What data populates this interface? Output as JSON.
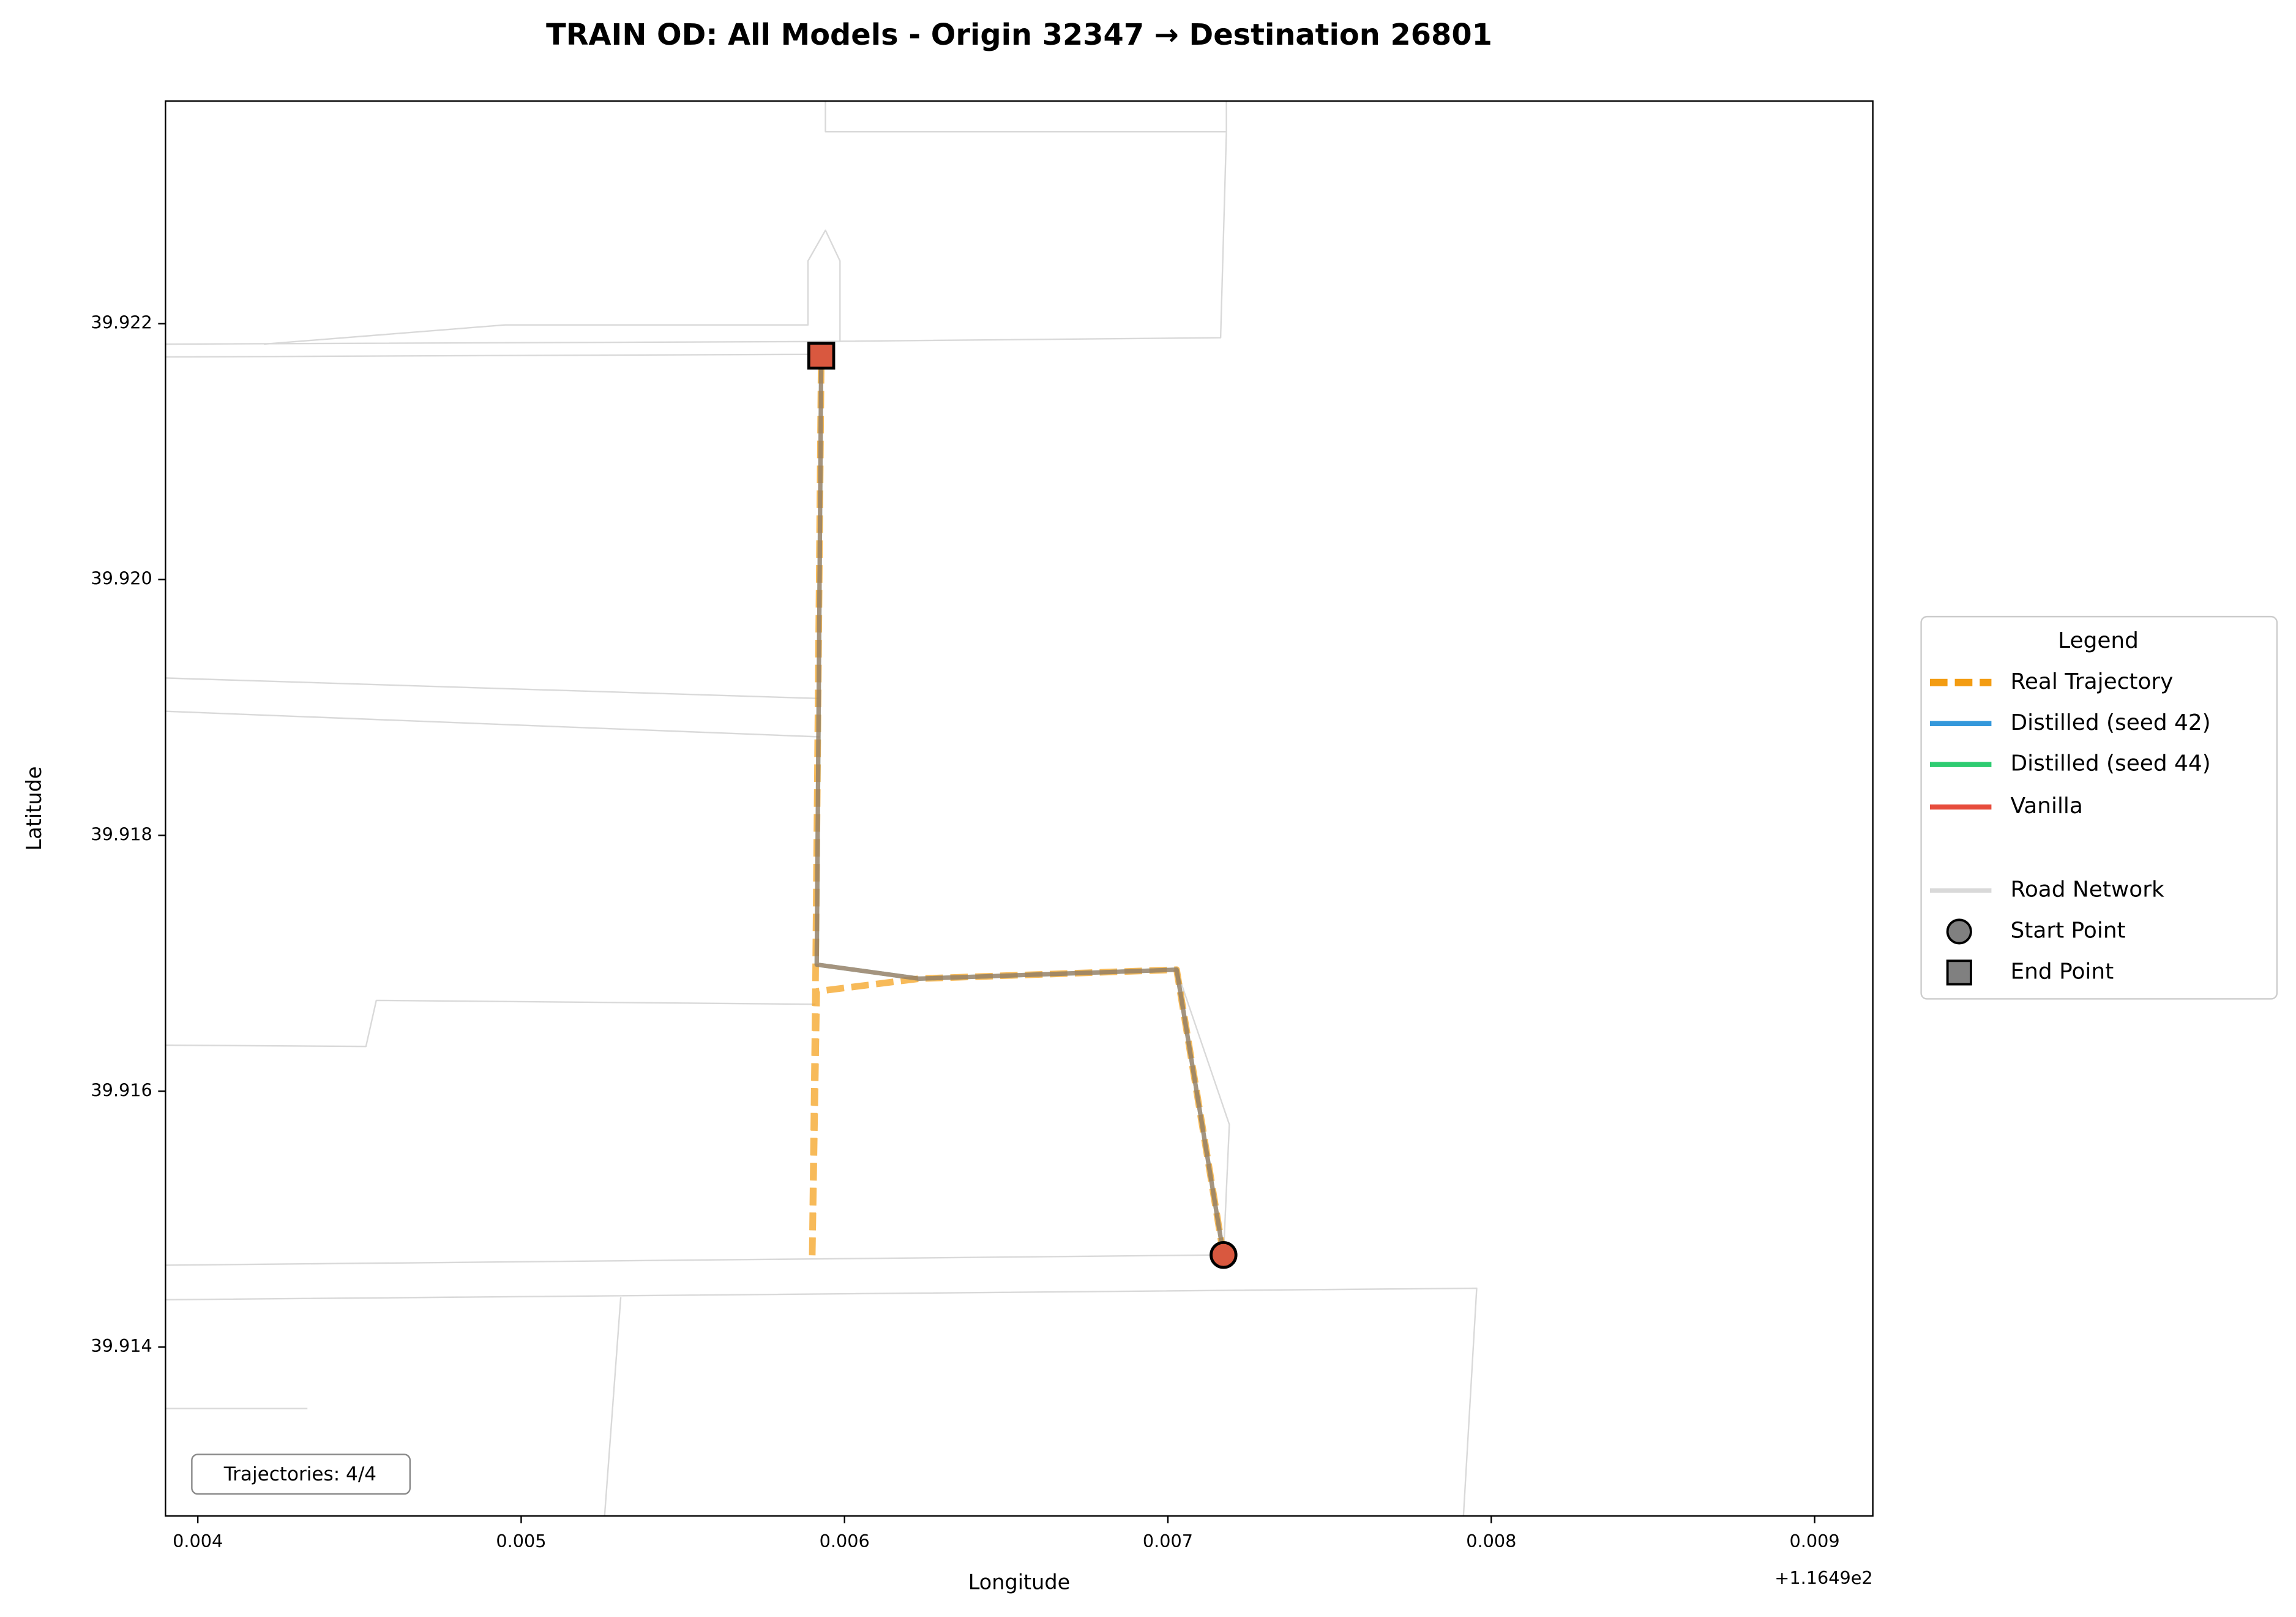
{
  "chart_data": {
    "type": "line",
    "title": "TRAIN OD: All Models - Origin 32347 → Destination 26801",
    "x_label": "Longitude",
    "y_label": "Latitude",
    "x_offset_label": "+1.1649e2",
    "xlim": [
      0.0039,
      0.00918
    ],
    "ylim": [
      39.91268,
      39.92374
    ],
    "xticks": [
      0.004,
      0.005,
      0.006,
      0.007,
      0.008,
      0.009
    ],
    "yticks": [
      39.914,
      39.916,
      39.918,
      {
        "value": 39.92,
        "label": "39.920"
      },
      39.922
    ],
    "legend_title": "Legend",
    "legend_position": "right",
    "annotation": "Trajectories: 4/4",
    "series": [
      {
        "name": "Real Trajectory",
        "color": "#f39c12",
        "style": "dashed",
        "x": [
          0.007172,
          0.007027,
          0.006231,
          0.005914,
          0.0059,
          0.00591,
          0.005928
        ],
        "y": [
          39.91472,
          39.91695,
          39.91688,
          39.91678,
          39.91469,
          39.91678,
          39.92175
        ]
      },
      {
        "name": "Distilled (seed 42)",
        "color": "#3498db",
        "style": "solid",
        "x": [
          0.007172,
          0.007027,
          0.006231,
          0.005914,
          0.005928
        ],
        "y": [
          39.91472,
          39.91695,
          39.91688,
          39.91699,
          39.92175
        ]
      },
      {
        "name": "Distilled (seed 44)",
        "color": "#2ecc71",
        "style": "solid",
        "x": [
          0.007172,
          0.007027,
          0.006231,
          0.005914,
          0.005928
        ],
        "y": [
          39.91472,
          39.91695,
          39.91688,
          39.91699,
          39.92175
        ]
      },
      {
        "name": "Vanilla",
        "color": "#e74c3c",
        "style": "solid",
        "x": [
          0.007172,
          0.007027,
          0.006231,
          0.005914,
          0.005928
        ],
        "y": [
          39.91472,
          39.91695,
          39.91688,
          39.91699,
          39.92175
        ]
      },
      {
        "name": "Road Network",
        "color": "#d9d9d9",
        "style": "road",
        "x": [
          0.0039,
          0.005887,
          0.007163,
          0.007181,
          0.005941,
          0.005941,
          null,
          0.004204,
          0.00495,
          0.005887,
          0.005887,
          0.005941,
          0.005986,
          0.005986,
          null,
          0.0039,
          0.005887,
          null,
          0.0039,
          0.005923,
          null,
          0.0039,
          0.005923,
          null,
          0.0039,
          0.00452,
          0.004552,
          0.00591,
          null,
          0.0039,
          0.007172,
          null,
          0.0039,
          0.007955,
          0.007914,
          null,
          0.005308,
          0.005258,
          null,
          0.0039,
          0.004339,
          null,
          0.007027,
          0.00719,
          0.007172,
          null,
          0.007181,
          0.007181
        ],
        "y": [
          39.92184,
          39.92186,
          39.92189,
          39.9235,
          39.9235,
          39.92374,
          null,
          39.92184,
          39.92199,
          39.92199,
          39.92249,
          39.92273,
          39.92249,
          39.92186,
          null,
          39.92174,
          39.92176,
          null,
          39.91923,
          39.91907,
          null,
          39.91897,
          39.91877,
          null,
          39.91636,
          39.91635,
          39.91671,
          39.91668,
          null,
          39.91464,
          39.91472,
          null,
          39.91437,
          39.91446,
          39.91268,
          null,
          39.91439,
          39.91268,
          null,
          39.91352,
          39.91352,
          null,
          39.91695,
          39.91574,
          39.91472,
          null,
          39.92374,
          39.9235
        ]
      },
      {
        "name": "Start Point",
        "color": "#808080",
        "marker": "circle",
        "marker_color": "#d9583f",
        "x": [
          0.007172
        ],
        "y": [
          39.91472
        ]
      },
      {
        "name": "End Point",
        "color": "#808080",
        "marker": "square",
        "marker_color": "#d9583f",
        "x": [
          0.005928
        ],
        "y": [
          39.92175
        ]
      }
    ]
  }
}
